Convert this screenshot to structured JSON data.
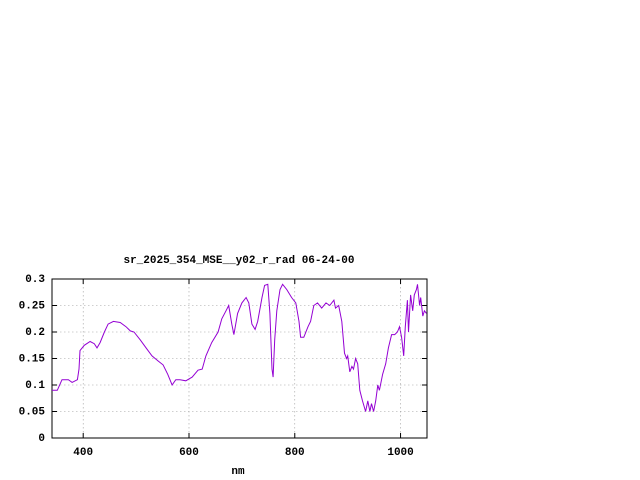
{
  "chart_data": {
    "type": "line",
    "title": "sr_2025_354_MSE__y02_r_rad 06-24-00",
    "x_label": "nm",
    "x": [
      341,
      351,
      360,
      372,
      379,
      389,
      392,
      394,
      402,
      413,
      421,
      426,
      432,
      440,
      447,
      457,
      470,
      481,
      489,
      496,
      508,
      519,
      530,
      542,
      551,
      560,
      568,
      575,
      583,
      594,
      606,
      617,
      625,
      632,
      643,
      655,
      662,
      670,
      675,
      681,
      685,
      692,
      700,
      708,
      713,
      719,
      725,
      730,
      738,
      743,
      749,
      753,
      757,
      759,
      762,
      766,
      772,
      777,
      785,
      794,
      802,
      808,
      811,
      817,
      825,
      830,
      836,
      843,
      851,
      859,
      866,
      874,
      877,
      883,
      889,
      894,
      898,
      900,
      904,
      908,
      911,
      915,
      919,
      923,
      928,
      934,
      938,
      942,
      945,
      949,
      953,
      957,
      960,
      966,
      972,
      977,
      983,
      989,
      994,
      998,
      1002,
      1006,
      1009,
      1013,
      1015,
      1019,
      1023,
      1026,
      1030,
      1032,
      1036,
      1038,
      1042,
      1045,
      1049
    ],
    "series": [
      {
        "name": "sr_2025_354_MSE__y02_r_rad",
        "color": "#9400d3",
        "values": [
          0.09,
          0.09,
          0.11,
          0.11,
          0.105,
          0.11,
          0.13,
          0.165,
          0.175,
          0.182,
          0.178,
          0.17,
          0.18,
          0.2,
          0.215,
          0.22,
          0.218,
          0.21,
          0.202,
          0.2,
          0.185,
          0.17,
          0.155,
          0.145,
          0.138,
          0.12,
          0.1,
          0.11,
          0.11,
          0.108,
          0.115,
          0.128,
          0.13,
          0.155,
          0.18,
          0.2,
          0.225,
          0.24,
          0.25,
          0.215,
          0.195,
          0.235,
          0.255,
          0.265,
          0.255,
          0.215,
          0.205,
          0.22,
          0.265,
          0.288,
          0.29,
          0.235,
          0.13,
          0.115,
          0.185,
          0.24,
          0.28,
          0.29,
          0.28,
          0.265,
          0.255,
          0.22,
          0.19,
          0.19,
          0.21,
          0.22,
          0.25,
          0.255,
          0.245,
          0.255,
          0.25,
          0.26,
          0.245,
          0.25,
          0.22,
          0.16,
          0.15,
          0.155,
          0.125,
          0.135,
          0.13,
          0.15,
          0.14,
          0.09,
          0.07,
          0.05,
          0.07,
          0.05,
          0.065,
          0.05,
          0.07,
          0.1,
          0.09,
          0.12,
          0.14,
          0.17,
          0.195,
          0.195,
          0.2,
          0.21,
          0.19,
          0.155,
          0.21,
          0.26,
          0.2,
          0.27,
          0.24,
          0.27,
          0.28,
          0.29,
          0.25,
          0.265,
          0.23,
          0.24,
          0.235
        ]
      }
    ],
    "xlim": [
      341,
      1050
    ],
    "xticks": [
      400,
      600,
      800,
      1000
    ],
    "ylim": [
      0,
      0.3
    ],
    "yticks": [
      0,
      0.05,
      0.1,
      0.15,
      0.2,
      0.25,
      0.3
    ],
    "grid": true
  }
}
